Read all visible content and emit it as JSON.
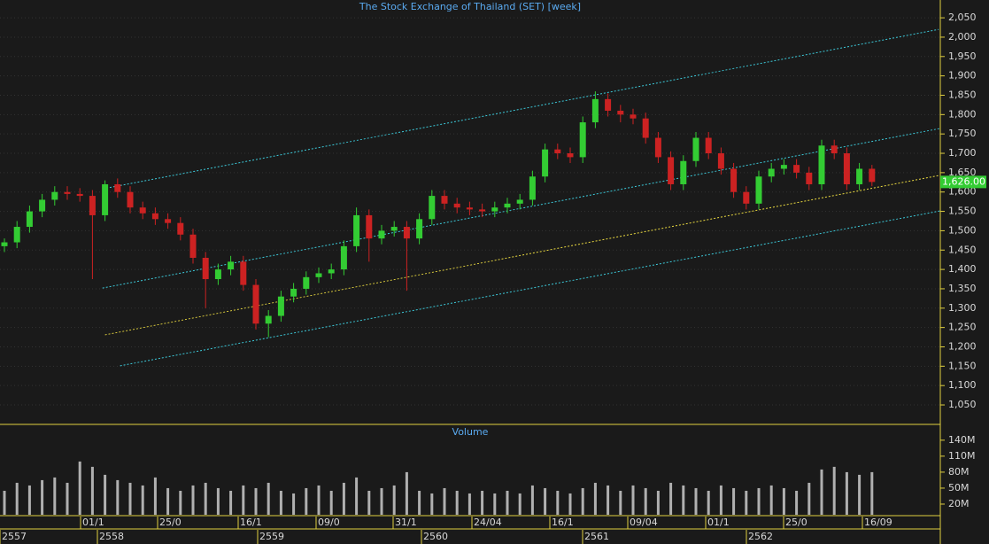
{
  "chart_data": {
    "type": "candlestick",
    "title": "The Stock Exchange of Thailand (SET) [week]",
    "open": [
      1460,
      1470,
      1510,
      1550,
      1580,
      1600,
      1595,
      1590,
      1540,
      1620,
      1600,
      1560,
      1545,
      1530,
      1520,
      1490,
      1430,
      1375,
      1400,
      1420,
      1360,
      1260,
      1280,
      1330,
      1350,
      1380,
      1390,
      1400,
      1460,
      1540,
      1480,
      1500,
      1510,
      1480,
      1530,
      1590,
      1570,
      1560,
      1555,
      1550,
      1560,
      1570,
      1580,
      1640,
      1710,
      1700,
      1690,
      1780,
      1840,
      1810,
      1800,
      1790,
      1740,
      1690,
      1620,
      1680,
      1740,
      1700,
      1660,
      1600,
      1570,
      1640,
      1660,
      1670,
      1650,
      1620,
      1720,
      1700,
      1620,
      1660
    ],
    "high": [
      1480,
      1525,
      1565,
      1595,
      1615,
      1615,
      1610,
      1605,
      1630,
      1635,
      1615,
      1575,
      1560,
      1545,
      1535,
      1505,
      1445,
      1415,
      1435,
      1435,
      1375,
      1295,
      1345,
      1365,
      1395,
      1405,
      1415,
      1475,
      1560,
      1555,
      1515,
      1525,
      1525,
      1545,
      1605,
      1605,
      1585,
      1575,
      1570,
      1575,
      1585,
      1595,
      1655,
      1725,
      1725,
      1715,
      1795,
      1860,
      1855,
      1825,
      1815,
      1805,
      1755,
      1705,
      1695,
      1755,
      1755,
      1715,
      1675,
      1615,
      1655,
      1675,
      1685,
      1685,
      1665,
      1735,
      1735,
      1715,
      1675,
      1670
    ],
    "low": [
      1445,
      1455,
      1495,
      1535,
      1565,
      1580,
      1575,
      1375,
      1525,
      1585,
      1545,
      1530,
      1515,
      1505,
      1475,
      1415,
      1300,
      1360,
      1385,
      1345,
      1245,
      1225,
      1265,
      1315,
      1335,
      1365,
      1375,
      1385,
      1445,
      1420,
      1465,
      1485,
      1345,
      1465,
      1515,
      1555,
      1545,
      1540,
      1535,
      1535,
      1545,
      1555,
      1565,
      1625,
      1685,
      1675,
      1675,
      1765,
      1795,
      1780,
      1775,
      1725,
      1675,
      1605,
      1605,
      1665,
      1685,
      1645,
      1585,
      1555,
      1555,
      1625,
      1645,
      1635,
      1605,
      1605,
      1685,
      1605,
      1605,
      1615
    ],
    "close": [
      1470,
      1510,
      1550,
      1580,
      1600,
      1595,
      1590,
      1540,
      1620,
      1600,
      1560,
      1545,
      1530,
      1520,
      1490,
      1430,
      1375,
      1400,
      1420,
      1360,
      1260,
      1280,
      1330,
      1350,
      1380,
      1390,
      1400,
      1460,
      1540,
      1480,
      1500,
      1510,
      1480,
      1530,
      1590,
      1570,
      1560,
      1555,
      1550,
      1560,
      1570,
      1580,
      1640,
      1710,
      1700,
      1690,
      1780,
      1840,
      1810,
      1800,
      1790,
      1740,
      1690,
      1620,
      1680,
      1740,
      1700,
      1660,
      1600,
      1570,
      1640,
      1660,
      1670,
      1650,
      1620,
      1720,
      1700,
      1620,
      1660,
      1626
    ],
    "up_color": "#33cc33",
    "down_color": "#cc2222",
    "ylim": [
      1002,
      2096
    ],
    "yticks": [
      {
        "value": 1050,
        "label": "1,050"
      },
      {
        "value": 1100,
        "label": "1,100"
      },
      {
        "value": 1150,
        "label": "1,150"
      },
      {
        "value": 1200,
        "label": "1,200"
      },
      {
        "value": 1250,
        "label": "1,250"
      },
      {
        "value": 1300,
        "label": "1,300"
      },
      {
        "value": 1350,
        "label": "1,350"
      },
      {
        "value": 1400,
        "label": "1,400"
      },
      {
        "value": 1450,
        "label": "1,450"
      },
      {
        "value": 1500,
        "label": "1,500"
      },
      {
        "value": 1550,
        "label": "1,550"
      },
      {
        "value": 1600,
        "label": "1,600"
      },
      {
        "value": 1650,
        "label": "1,650"
      },
      {
        "value": 1700,
        "label": "1,700"
      },
      {
        "value": 1750,
        "label": "1,750"
      },
      {
        "value": 1800,
        "label": "1,800"
      },
      {
        "value": 1850,
        "label": "1,850"
      },
      {
        "value": 1900,
        "label": "1,900"
      },
      {
        "value": 1950,
        "label": "1,950"
      },
      {
        "value": 2000,
        "label": "2,000"
      },
      {
        "value": 2050,
        "label": "2,050"
      }
    ],
    "last": {
      "value": 1626,
      "label": "1,626.00"
    },
    "trendlines": [
      {
        "x": [
          8.1,
          74.3
        ],
        "y": [
          1610,
          2020
        ],
        "color": "#3cc8d8"
      },
      {
        "x": [
          7.8,
          74.4
        ],
        "y": [
          1352,
          1764
        ],
        "color": "#3cc8d8"
      },
      {
        "x": [
          8,
          74.4
        ],
        "y": [
          1231,
          1643
        ],
        "color": "#e8d840"
      },
      {
        "x": [
          9.2,
          74.4
        ],
        "y": [
          1151,
          1551
        ],
        "color": "#3cc8d8"
      }
    ],
    "volume": {
      "title": "Volume",
      "color": "#b0b0b0",
      "ylim": [
        0,
        168
      ],
      "yticks": [
        {
          "value": 20,
          "label": "20M"
        },
        {
          "value": 50,
          "label": "50M"
        },
        {
          "value": 80,
          "label": "80M"
        },
        {
          "value": 110,
          "label": "110M"
        },
        {
          "value": 140,
          "label": "140M"
        }
      ],
      "values": [
        45,
        60,
        55,
        65,
        70,
        60,
        100,
        90,
        75,
        65,
        60,
        55,
        70,
        50,
        45,
        55,
        60,
        50,
        45,
        55,
        50,
        60,
        45,
        40,
        50,
        55,
        45,
        60,
        70,
        45,
        50,
        55,
        80,
        45,
        40,
        50,
        45,
        40,
        45,
        40,
        45,
        40,
        55,
        50,
        45,
        40,
        50,
        60,
        55,
        45,
        55,
        50,
        45,
        60,
        55,
        50,
        45,
        55,
        50,
        45,
        50,
        55,
        50,
        45,
        60,
        85,
        90,
        80,
        75,
        80
      ]
    },
    "dates": [
      "01/1",
      "25/0",
      "16/1",
      "09/0",
      "31/1",
      "24/04",
      "16/1",
      "09/04",
      "01/1",
      "25/0",
      "16/09"
    ],
    "years": [
      "2557",
      "2558",
      "2559",
      "2560",
      "2561",
      "2562"
    ]
  }
}
